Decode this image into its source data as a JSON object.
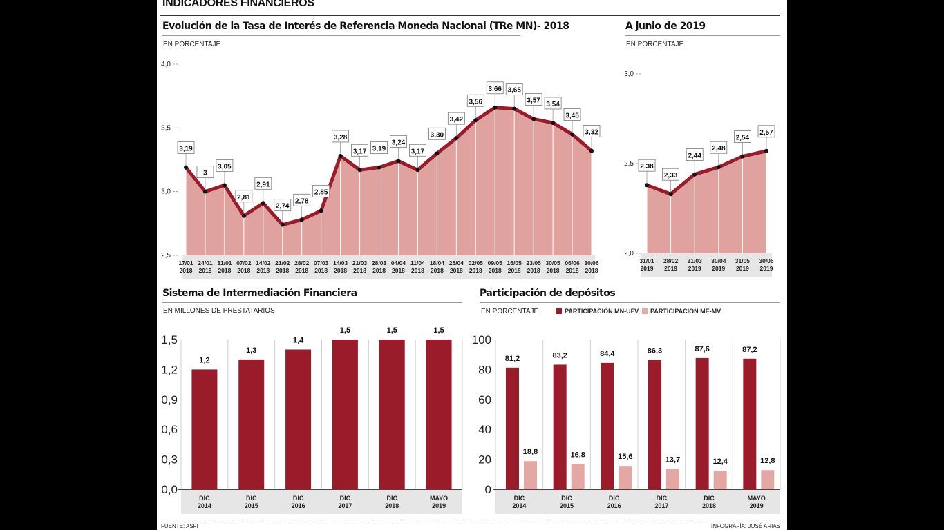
{
  "header": {
    "title": "INDICADORES FINANCIEROS"
  },
  "footer": {
    "source": "FUENTE: ASFI",
    "credit": "INFOGRAFÍA: JOSÉ ARIAS"
  },
  "colors": {
    "dark": "#9a1c2b",
    "light": "#e3a8a3",
    "area": "#dfa29e",
    "axisband": "#e6e6e6"
  },
  "sections": {
    "tre": {
      "title": "Evolución de la Tasa de Interés de Referencia Moneda Nacional (TRe MN)- 2018",
      "unit": "EN PORCENTAJE"
    },
    "jun": {
      "title": "A junio de 2019",
      "unit": "EN PORCENTAJE"
    },
    "sif": {
      "title": "Sistema de Intermediación Financiera",
      "unit": "EN MILLONES DE PRESTATARIOS"
    },
    "dep": {
      "title": "Participación de depósitos",
      "unit": "EN PORCENTAJE",
      "legend_mn": "PARTICIPACIÓN MN-UFV",
      "legend_me": "PARTICIPACIÓN ME-MV"
    }
  },
  "chart_data": [
    {
      "type": "area",
      "title": "Evolución de la Tasa de Interés de Referencia Moneda Nacional (TRe MN)- 2018",
      "ylabel": "EN PORCENTAJE",
      "ylim": [
        2.5,
        4.0
      ],
      "yticks": [
        "4,0",
        "3,5",
        "3,0",
        "2,5"
      ],
      "categories": [
        "17/01|2018",
        "24/01|2018",
        "31/01|2018",
        "07/02|2018",
        "14/02|2018",
        "21/02|2018",
        "28/02|2018",
        "07/03|2018",
        "14/03|2018",
        "21/03|2018",
        "28/03|2018",
        "04/04|2018",
        "11/04|2018",
        "18/04|2018",
        "25/04|2018",
        "02/05|2018",
        "09/05|2018",
        "16/05|2018",
        "23/05|2018",
        "30/05|2018",
        "06/06|2018",
        "30/06|2018"
      ],
      "values": [
        3.19,
        3.0,
        3.05,
        2.81,
        2.91,
        2.74,
        2.78,
        2.85,
        3.28,
        3.17,
        3.19,
        3.24,
        3.17,
        3.3,
        3.42,
        3.56,
        3.66,
        3.65,
        3.57,
        3.54,
        3.45,
        3.32
      ],
      "labels": [
        "3,19",
        "3",
        "3,05",
        "2,81",
        "2,91",
        "2,74",
        "2,78",
        "2,85",
        "3,28",
        "3,17",
        "3,19",
        "3,24",
        "3,17",
        "3,30",
        "3,42",
        "3,56",
        "3,66",
        "3,65",
        "3,57",
        "3,54",
        "3,45",
        "3,32"
      ],
      "grid": false
    },
    {
      "type": "area",
      "title": "A junio de 2019",
      "ylabel": "EN PORCENTAJE",
      "ylim": [
        2.0,
        3.0
      ],
      "yticks": [
        "3,0",
        "2,5",
        "2,0"
      ],
      "categories": [
        "31/01|2019",
        "28/02|2019",
        "31/03|2019",
        "30/04|2019",
        "31/05|2019",
        "30/06|2019"
      ],
      "values": [
        2.38,
        2.33,
        2.44,
        2.48,
        2.54,
        2.57
      ],
      "labels": [
        "2,38",
        "2,33",
        "2,44",
        "2,48",
        "2,54",
        "2,57"
      ],
      "grid": false
    },
    {
      "type": "bar",
      "title": "Sistema de Intermediación Financiera",
      "ylabel": "EN MILLONES DE PRESTATARIOS",
      "ylim": [
        0,
        1.5
      ],
      "yticks": [
        "1,5",
        "1,2",
        "0,9",
        "0,6",
        "0,3",
        "0,0"
      ],
      "categories": [
        "DIC|2014",
        "DIC|2015",
        "DIC|2016",
        "DIC|2017",
        "DIC|2018",
        "MAYO|2019"
      ],
      "values": [
        1.2,
        1.3,
        1.4,
        1.5,
        1.5,
        1.5
      ],
      "labels": [
        "1,2",
        "1,3",
        "1,4",
        "1,5",
        "1,5",
        "1,5"
      ],
      "grid": false
    },
    {
      "type": "bar",
      "title": "Participación de depósitos",
      "ylabel": "EN PORCENTAJE",
      "ylim": [
        0,
        100
      ],
      "yticks": [
        "100",
        "80",
        "60",
        "40",
        "20",
        "0"
      ],
      "categories": [
        "DIC|2014",
        "DIC|2015",
        "DIC|2016",
        "DIC|2017",
        "DIC|2018",
        "MAYO|2019"
      ],
      "series": [
        {
          "name": "PARTICIPACIÓN MN-UFV",
          "values": [
            81.2,
            83.2,
            84.4,
            86.3,
            87.6,
            87.2
          ],
          "labels": [
            "81,2",
            "83,2",
            "84,4",
            "86,3",
            "87,6",
            "87,2"
          ]
        },
        {
          "name": "PARTICIPACIÓN ME-MV",
          "values": [
            18.8,
            16.8,
            15.6,
            13.7,
            12.4,
            12.8
          ],
          "labels": [
            "18,8",
            "16,8",
            "15,6",
            "13,7",
            "12,4",
            "12,8"
          ]
        }
      ],
      "legend": "top",
      "grid": false
    }
  ]
}
